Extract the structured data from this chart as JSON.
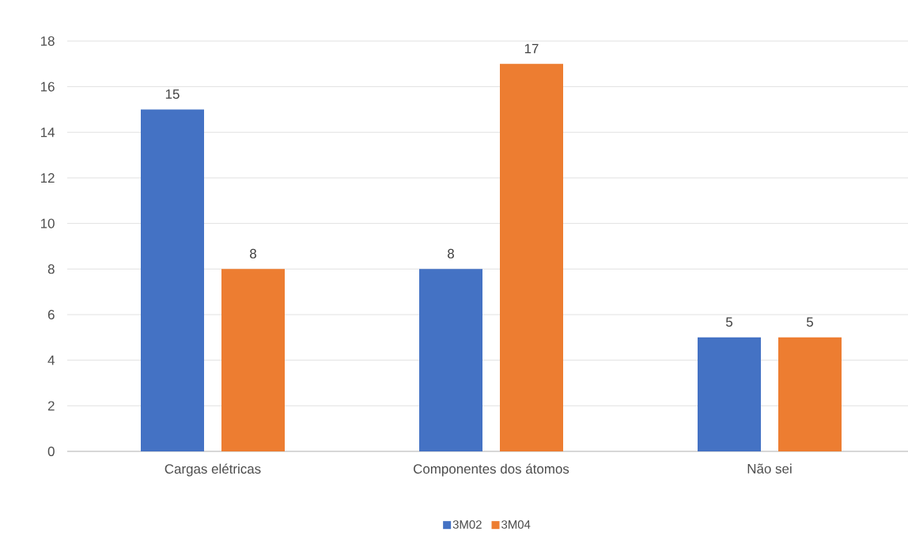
{
  "chart_data": {
    "type": "bar",
    "categories": [
      "Cargas elétricas",
      "Componentes dos átomos",
      "Não sei"
    ],
    "series": [
      {
        "name": "3M02",
        "color": "#4472c4",
        "values": [
          15,
          8,
          5
        ]
      },
      {
        "name": "3M04",
        "color": "#ed7d31",
        "values": [
          8,
          17,
          5
        ]
      }
    ],
    "ylim": [
      0,
      18
    ],
    "yticks": [
      0,
      2,
      4,
      6,
      8,
      10,
      12,
      14,
      16,
      18
    ],
    "grid": "y",
    "legend": "bottom",
    "data_labels": true
  }
}
